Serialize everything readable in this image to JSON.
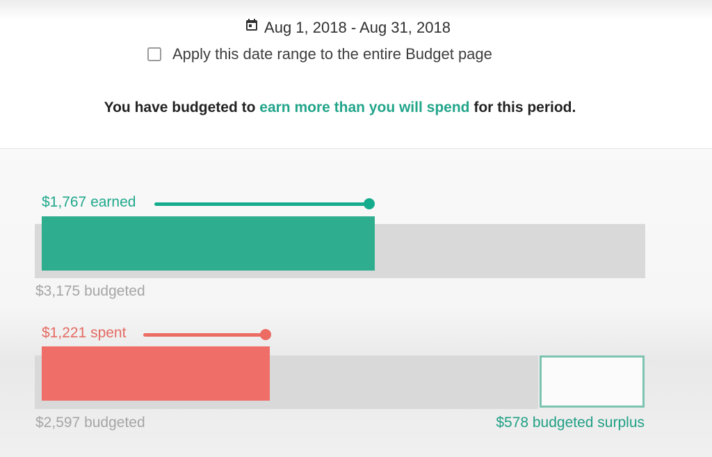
{
  "header": {
    "date_range": "Aug 1, 2018 - Aug 31, 2018",
    "apply_label": "Apply this date range to the entire Budget page",
    "apply_checked": false,
    "calendar_icon": "calendar-icon"
  },
  "summary": {
    "prefix": "You have budgeted to ",
    "highlight": "earn more than you will spend",
    "suffix": " for this period."
  },
  "income": {
    "actual_label": "$1,767 earned",
    "budget_label": "$3,175 budgeted",
    "actual": 1767,
    "budgeted": 3175
  },
  "spending": {
    "actual_label": "$1,221 spent",
    "budget_label": "$2,597 budgeted",
    "actual": 1221,
    "budgeted": 2597,
    "surplus_label": "$578 budgeted surplus",
    "surplus": 578
  },
  "colors": {
    "income": "#2fae8f",
    "income_dark": "#14ac8c",
    "spending": "#ef6e67",
    "spending_dark": "#ec6c63",
    "track": "#d9d9d9",
    "surplus_border": "#7cc4b0"
  }
}
